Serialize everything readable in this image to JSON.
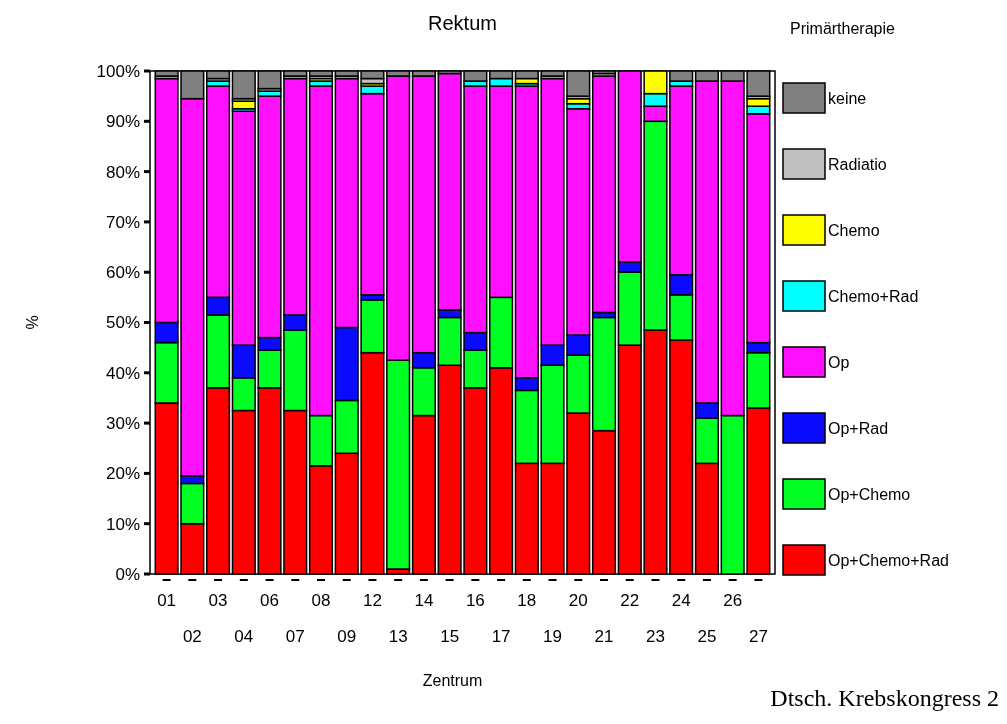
{
  "chart_data": {
    "type": "bar",
    "title": "Rektum",
    "xlabel": "Zentrum",
    "ylabel": "%",
    "legend_title": "Primärtherapie",
    "legend": "right",
    "stacked": true,
    "grid": false,
    "categories": [
      "01",
      "02",
      "03",
      "04",
      "06",
      "07",
      "08",
      "09",
      "12",
      "13",
      "14",
      "15",
      "16",
      "17",
      "18",
      "19",
      "20",
      "21",
      "22",
      "23",
      "24",
      "25",
      "26",
      "27"
    ],
    "ylim": [
      0,
      100
    ],
    "yticks": [
      {
        "value": 0,
        "label": "0%"
      },
      {
        "value": 10,
        "label": "10%"
      },
      {
        "value": 20,
        "label": "20%"
      },
      {
        "value": 30,
        "label": "30%"
      },
      {
        "value": 40,
        "label": "40%"
      },
      {
        "value": 50,
        "label": "50%"
      },
      {
        "value": 60,
        "label": "60%"
      },
      {
        "value": 70,
        "label": "70%"
      },
      {
        "value": 80,
        "label": "80%"
      },
      {
        "value": 90,
        "label": "90%"
      },
      {
        "value": 100,
        "label": "100%"
      }
    ],
    "series": [
      {
        "name": "Op+Chemo+Rad",
        "color": "#ff0000",
        "values": [
          34,
          10,
          37,
          32.5,
          37,
          32.5,
          21.5,
          24,
          44,
          1,
          31.5,
          41.5,
          37,
          41,
          22,
          22,
          32,
          28.5,
          45.5,
          48.5,
          46.5,
          22,
          0,
          33
        ]
      },
      {
        "name": "Op+Chemo",
        "color": "#00ff22",
        "values": [
          12,
          8,
          14.5,
          6.5,
          7.5,
          16,
          10,
          10.5,
          10.5,
          41.5,
          9.5,
          9.5,
          7.5,
          14,
          14.5,
          19.5,
          11.5,
          22.5,
          14.5,
          41.5,
          9,
          9,
          31.5,
          11
        ]
      },
      {
        "name": "Op+Rad",
        "color": "#0a0aff",
        "values": [
          4,
          1.5,
          3.5,
          6.5,
          2.5,
          3,
          0,
          14.5,
          1,
          0,
          3,
          1.5,
          3.5,
          0,
          2.5,
          4,
          4,
          1,
          2,
          0,
          4,
          3,
          0,
          2
        ]
      },
      {
        "name": "Op",
        "color": "#ff10ff",
        "values": [
          48.5,
          75,
          42,
          46.5,
          48,
          47,
          65.5,
          49.5,
          40,
          56.5,
          55,
          47,
          49,
          42,
          58,
          53,
          45,
          47,
          38,
          3,
          37.5,
          64,
          66.5,
          45.5
        ]
      },
      {
        "name": "Chemo+Rad",
        "color": "#00ffff",
        "values": [
          0,
          0,
          1,
          0.5,
          1,
          0,
          1,
          0,
          1.5,
          0,
          0,
          0,
          1,
          1.5,
          0.5,
          0,
          1,
          0,
          0,
          2.5,
          1,
          0,
          0,
          1.5
        ]
      },
      {
        "name": "Chemo",
        "color": "#ffff00",
        "values": [
          0,
          0,
          0,
          1.5,
          0,
          0,
          0.5,
          0,
          0.5,
          0,
          0,
          0,
          0,
          0,
          1,
          0,
          1,
          0,
          0,
          4.5,
          0,
          0,
          0,
          1.5
        ]
      },
      {
        "name": "Radiatio",
        "color": "#c0c0c0",
        "values": [
          0.5,
          0,
          0.5,
          0.5,
          0.5,
          0.5,
          0.5,
          0.5,
          1,
          0,
          0,
          0,
          0,
          0,
          0,
          0.5,
          0.5,
          0.5,
          0,
          0,
          0,
          0,
          0,
          0.5
        ]
      },
      {
        "name": "keine",
        "color": "#808080",
        "values": [
          1,
          5.5,
          1.5,
          5.5,
          3.5,
          1,
          1,
          1,
          1.5,
          1,
          1,
          0.5,
          2,
          1.5,
          1.5,
          1,
          5,
          0.5,
          0,
          0,
          2,
          2,
          2,
          5
        ]
      }
    ],
    "annotations": [
      "Dtsch. Krebskongress 2"
    ]
  }
}
